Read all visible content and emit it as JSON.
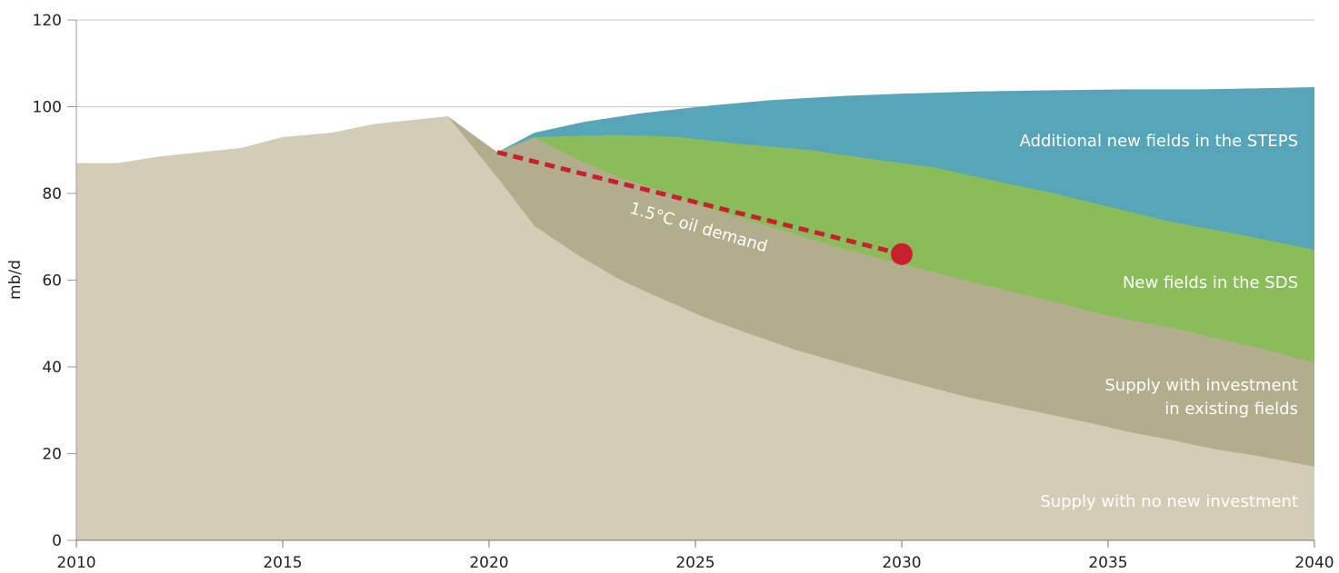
{
  "chart_data": {
    "type": "area",
    "title": "",
    "xlabel": "",
    "ylabel": "mb/d",
    "xlim": [
      2010,
      2040
    ],
    "ylim": [
      0,
      120
    ],
    "x_ticks": [
      2010,
      2015,
      2020,
      2025,
      2030,
      2035,
      2040
    ],
    "y_ticks": [
      0,
      20,
      40,
      60,
      80,
      100,
      120
    ],
    "grid": true,
    "series": [
      {
        "name": "Supply with no new investment",
        "color": "#d3ccb6",
        "points": [
          [
            2010,
            87
          ],
          [
            2011,
            87
          ],
          [
            2012,
            88.5
          ],
          [
            2014,
            90.5
          ],
          [
            2015,
            93
          ],
          [
            2016.2,
            94
          ],
          [
            2017.2,
            96
          ],
          [
            2019,
            97.8
          ],
          [
            2020.3,
            82.5
          ],
          [
            2021.1,
            72.5
          ],
          [
            2022.2,
            65.5
          ],
          [
            2023.2,
            60
          ],
          [
            2024,
            56.5
          ],
          [
            2025.2,
            51.5
          ],
          [
            2026.2,
            48
          ],
          [
            2027.4,
            44
          ],
          [
            2028.5,
            41
          ],
          [
            2029.6,
            38
          ],
          [
            2030.6,
            35.5
          ],
          [
            2031.6,
            33
          ],
          [
            2032.6,
            31
          ],
          [
            2033.6,
            29
          ],
          [
            2034.6,
            27
          ],
          [
            2035.5,
            25
          ],
          [
            2036.6,
            23
          ],
          [
            2037.6,
            21
          ],
          [
            2038.6,
            19.5
          ],
          [
            2040,
            17
          ]
        ]
      },
      {
        "name": "Supply with investment in existing fields",
        "color": "#b2ad8c",
        "points": [
          [
            2019,
            97.8
          ],
          [
            2020.2,
            89.5
          ],
          [
            2021.1,
            92.8
          ],
          [
            2022.1,
            88
          ],
          [
            2023.2,
            83.5
          ],
          [
            2024.2,
            80.5
          ],
          [
            2025.2,
            77
          ],
          [
            2026.2,
            74
          ],
          [
            2027.3,
            71
          ],
          [
            2028.3,
            68
          ],
          [
            2029.5,
            65
          ],
          [
            2030.5,
            62.5
          ],
          [
            2031.5,
            60
          ],
          [
            2032.6,
            57.5
          ],
          [
            2033.7,
            55
          ],
          [
            2034.7,
            52.5
          ],
          [
            2035.7,
            50.5
          ],
          [
            2036.8,
            48.5
          ],
          [
            2037.9,
            46
          ],
          [
            2038.8,
            44
          ],
          [
            2040,
            41
          ]
        ]
      },
      {
        "name": "New fields in the SDS",
        "color": "#8abd5a",
        "points": [
          [
            2020.2,
            89.5
          ],
          [
            2021.1,
            93
          ],
          [
            2023.1,
            93.5
          ],
          [
            2024.6,
            93
          ],
          [
            2026,
            91.5
          ],
          [
            2027.8,
            90
          ],
          [
            2029.2,
            88
          ],
          [
            2030.8,
            86
          ],
          [
            2032.2,
            83
          ],
          [
            2033.7,
            80
          ],
          [
            2035,
            77
          ],
          [
            2036.5,
            73.5
          ],
          [
            2038.2,
            70.5
          ],
          [
            2040,
            67
          ]
        ]
      },
      {
        "name": "Additional new fields in the STEPS",
        "color": "#57a5b8",
        "points": [
          [
            2020.2,
            89.5
          ],
          [
            2021.1,
            94
          ],
          [
            2022.3,
            96.5
          ],
          [
            2023.7,
            98.5
          ],
          [
            2025.3,
            100.2
          ],
          [
            2026.8,
            101.5
          ],
          [
            2028.6,
            102.5
          ],
          [
            2030,
            103
          ],
          [
            2031.8,
            103.5
          ],
          [
            2033.7,
            103.8
          ],
          [
            2035.5,
            104
          ],
          [
            2037.3,
            104
          ],
          [
            2040,
            104.5
          ]
        ]
      }
    ],
    "demand_line": {
      "name": "1.5°C oil demand",
      "color": "#c8202f",
      "points": [
        [
          2020.2,
          89.5
        ],
        [
          2030,
          66
        ]
      ]
    },
    "labels": {
      "steps": "Additional new fields in the STEPS",
      "sds": "New fields in the SDS",
      "existing_line1": "Supply with investment",
      "existing_line2": "in existing fields",
      "no_investment": "Supply with no new investment",
      "demand": "1.5°C oil demand"
    }
  }
}
